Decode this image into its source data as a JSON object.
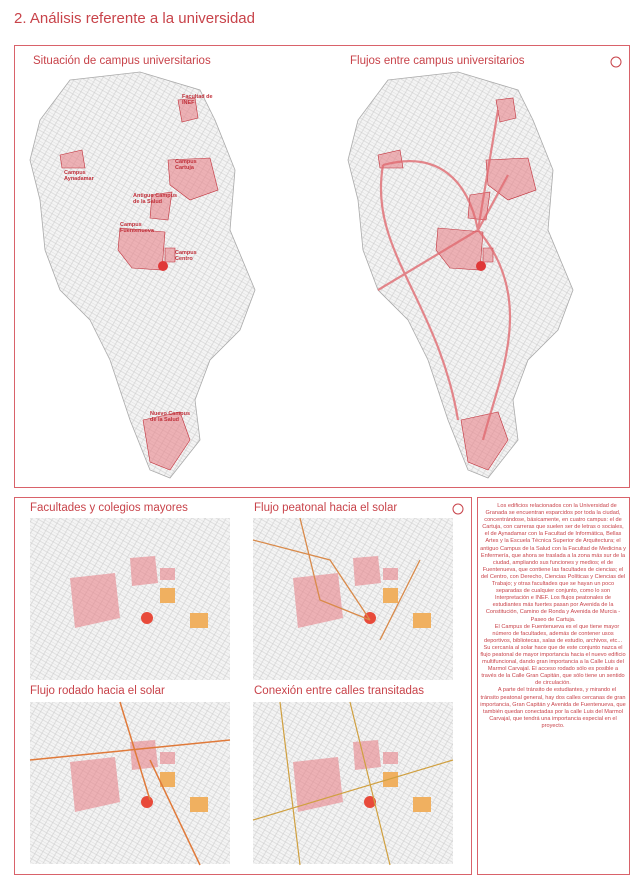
{
  "header": {
    "title": "2. Análisis referente a la universidad"
  },
  "top_panel": {
    "maps": [
      {
        "title": "Situación de campus universitarios",
        "labels": [
          "Facultad de INEF",
          "Campus Aynadamar",
          "Campus Cartuja",
          "Antiguo Campus de la Salud",
          "Campus Fuentenueva",
          "Campus Centro",
          "Nuevo Campus de la Salud"
        ]
      },
      {
        "title": "Flujos entre campus universitarios"
      }
    ]
  },
  "bottom_panel": {
    "maps": [
      {
        "title": "Facultades y colegios mayores"
      },
      {
        "title": "Flujo peatonal hacia el solar"
      },
      {
        "title": "Flujo rodado hacia el solar"
      },
      {
        "title": "Conexión entre calles transitadas"
      }
    ]
  },
  "text_panel": {
    "paragraphs": [
      "Los edificios relacionados con la Universidad de Granada se encuentran esparcidos por toda la ciudad, concentrándose, básicamente, en cuatro campus: el de Cartuja, con carreras que suelen ser de letras o sociales, el de Aynadamar con la Facultad de Informática, Bellas Artes y la Escuela Técnica Superior de Arquitectura; el antiguo Campus de la Salud con la Facultad de Medicina y Enfermería, que ahora se traslada a la zona más sur de la ciudad, ampliando sus funciones y medios; el de Fuentenueva, que contiene las facultades de ciencias; el del Centro, con Derecho, Ciencias Políticas y Ciencias del Trabajo; y otras facultades que se hayan un poco separadas de cualquier conjunto, como lo son Interpretación e INEF. Los flujos peatonales de estudiantes más fuertes pasan por Avenida de la Constitución, Camino de Ronda y Avenida de Murcia - Paseo de Cartuja.",
      "El Campus de Fuentenueva es el que tiene mayor número de facultades, además de contener usos deportivos, bibliotecas, salas de estudio, archivos, etc... Su cercanía al solar hace que de este conjunto nazca el flujo peatonal de mayor importancia hacia el nuevo edificio multifuncional, dando gran importancia a la Calle Luis del Marmol Carvajal. El acceso rodado sólo es posible a través de la Calle Gran Capitán, que sólo tiene un sentido de circulación.",
      "A parte del tránsito de estudiantes, y mirando el tránsito peatonal general, hay dos calles cercanas de gran importancia, Gran Capitán y Avenida de Fuentenueva, que también quedan conectadas por la calle Luis del Marmol Carvajal, que tendrá una importancia especial en el proyecto."
    ]
  }
}
